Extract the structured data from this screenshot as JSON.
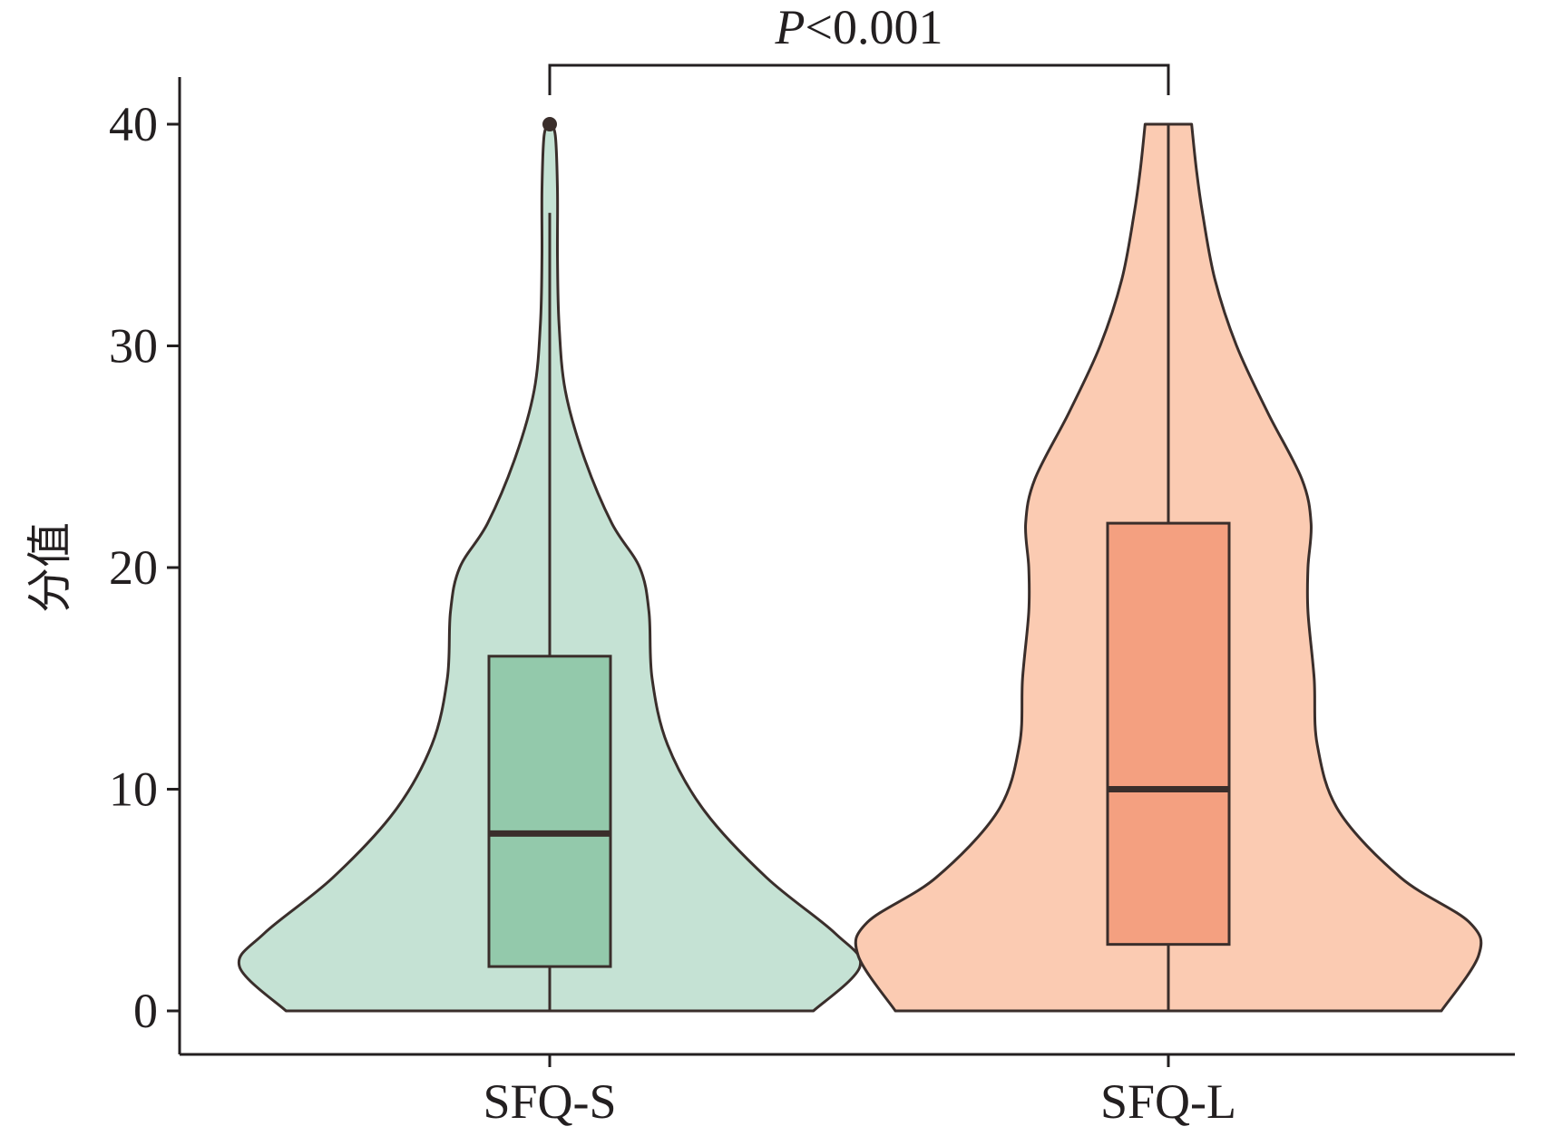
{
  "chart_data": {
    "type": "violin",
    "ylabel": "分值",
    "xlabel": "",
    "ylim": [
      0,
      40
    ],
    "yticks": [
      0,
      10,
      20,
      30,
      40
    ],
    "categories": [
      "SFQ-S",
      "SFQ-L"
    ],
    "series": [
      {
        "category": "SFQ-S",
        "fill_color": "#c5e2d4",
        "box_color": "#93c9ab",
        "min": 0,
        "q1": 2,
        "median": 8,
        "q3": 16,
        "whisker_high": 36,
        "outliers": [
          40
        ],
        "max": 40,
        "density_profile": [
          {
            "y": 0,
            "w": 0.85
          },
          {
            "y": 2,
            "w": 1.0
          },
          {
            "y": 3.5,
            "w": 0.92
          },
          {
            "y": 6,
            "w": 0.7
          },
          {
            "y": 9,
            "w": 0.5
          },
          {
            "y": 12,
            "w": 0.38
          },
          {
            "y": 15,
            "w": 0.33
          },
          {
            "y": 18,
            "w": 0.32
          },
          {
            "y": 20,
            "w": 0.29
          },
          {
            "y": 22,
            "w": 0.2
          },
          {
            "y": 25,
            "w": 0.11
          },
          {
            "y": 28,
            "w": 0.05
          },
          {
            "y": 31,
            "w": 0.03
          },
          {
            "y": 34,
            "w": 0.025
          },
          {
            "y": 37,
            "w": 0.025
          },
          {
            "y": 39.5,
            "w": 0.018
          },
          {
            "y": 40,
            "w": 0.0
          }
        ]
      },
      {
        "category": "SFQ-L",
        "fill_color": "#fbcbb2",
        "box_color": "#f4a080",
        "min": 0,
        "q1": 3,
        "median": 10,
        "q3": 22,
        "whisker_high": 40,
        "outliers": [],
        "max": 40,
        "density_profile": [
          {
            "y": 0,
            "w": 0.88
          },
          {
            "y": 2.5,
            "w": 1.0
          },
          {
            "y": 4,
            "w": 0.97
          },
          {
            "y": 6,
            "w": 0.75
          },
          {
            "y": 9,
            "w": 0.55
          },
          {
            "y": 12,
            "w": 0.48
          },
          {
            "y": 15,
            "w": 0.47
          },
          {
            "y": 18,
            "w": 0.45
          },
          {
            "y": 20,
            "w": 0.45
          },
          {
            "y": 22,
            "w": 0.46
          },
          {
            "y": 24,
            "w": 0.43
          },
          {
            "y": 27,
            "w": 0.32
          },
          {
            "y": 30,
            "w": 0.22
          },
          {
            "y": 33,
            "w": 0.15
          },
          {
            "y": 36,
            "w": 0.11
          },
          {
            "y": 38,
            "w": 0.09
          },
          {
            "y": 40,
            "w": 0.075
          }
        ]
      }
    ],
    "annotation": {
      "text_italic": "P",
      "text_rest": "<0.001",
      "between": [
        "SFQ-S",
        "SFQ-L"
      ]
    },
    "grid": false
  }
}
